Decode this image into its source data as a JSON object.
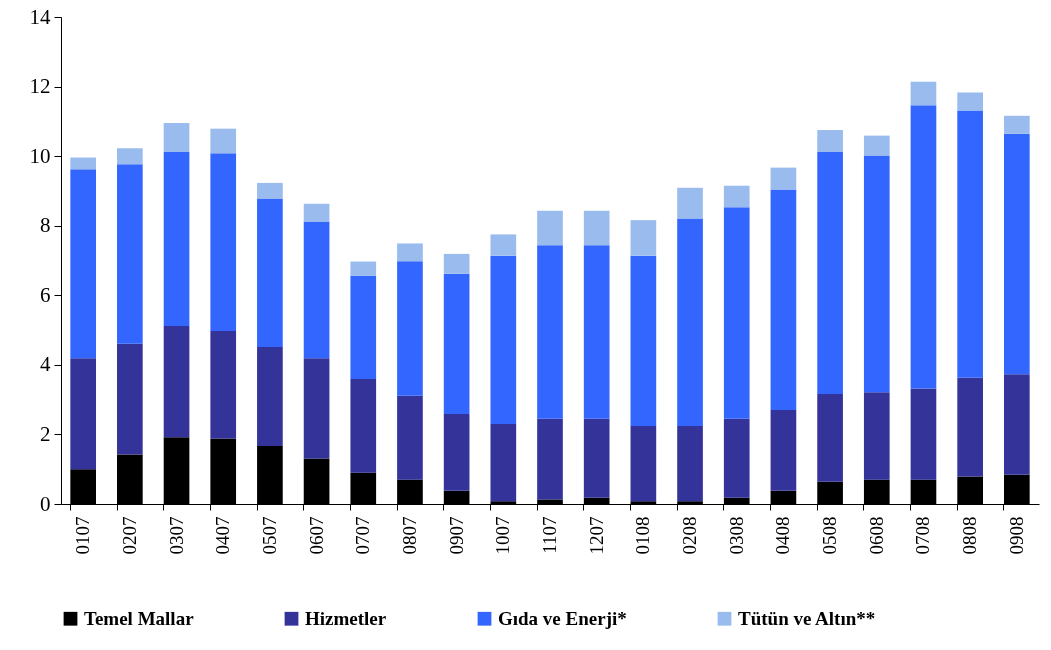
{
  "chart_data": {
    "type": "bar",
    "stacked": true,
    "categories": [
      "0107",
      "0207",
      "0307",
      "0407",
      "0507",
      "0607",
      "0707",
      "0807",
      "0907",
      "1007",
      "1107",
      "1207",
      "0108",
      "0208",
      "0308",
      "0408",
      "0508",
      "0608",
      "0708",
      "0808",
      "0908"
    ],
    "series": [
      {
        "name": "Temel Mallar",
        "color": "#000000",
        "values": [
          1.0,
          1.42,
          1.92,
          1.88,
          1.67,
          1.31,
          0.9,
          0.7,
          0.38,
          0.08,
          0.13,
          0.18,
          0.08,
          0.08,
          0.18,
          0.38,
          0.64,
          0.7,
          0.7,
          0.79,
          0.84
        ]
      },
      {
        "name": "Hizmetler",
        "color": "#333399",
        "values": [
          3.19,
          3.19,
          3.2,
          3.09,
          2.84,
          2.88,
          2.69,
          2.41,
          2.21,
          2.22,
          2.32,
          2.27,
          2.16,
          2.16,
          2.27,
          2.32,
          2.52,
          2.51,
          2.62,
          2.84,
          2.89
        ]
      },
      {
        "name": "Gıda ve Enerji*",
        "color": "#3366ff",
        "values": [
          5.43,
          5.16,
          5.0,
          5.11,
          4.27,
          3.93,
          2.97,
          3.87,
          4.03,
          4.84,
          4.99,
          4.99,
          4.9,
          5.97,
          6.08,
          6.34,
          6.96,
          6.81,
          8.14,
          7.68,
          6.91
        ]
      },
      {
        "name": "Tütün ve Altın**",
        "color": "#99bbee",
        "values": [
          0.34,
          0.46,
          0.83,
          0.71,
          0.45,
          0.51,
          0.41,
          0.51,
          0.57,
          0.61,
          0.99,
          0.99,
          1.02,
          0.88,
          0.62,
          0.63,
          0.63,
          0.57,
          0.68,
          0.52,
          0.52
        ]
      }
    ],
    "ylim": [
      0,
      14
    ],
    "yticks": [
      0,
      2,
      4,
      6,
      8,
      10,
      12,
      14
    ],
    "grid": false,
    "legend": "bottom"
  }
}
